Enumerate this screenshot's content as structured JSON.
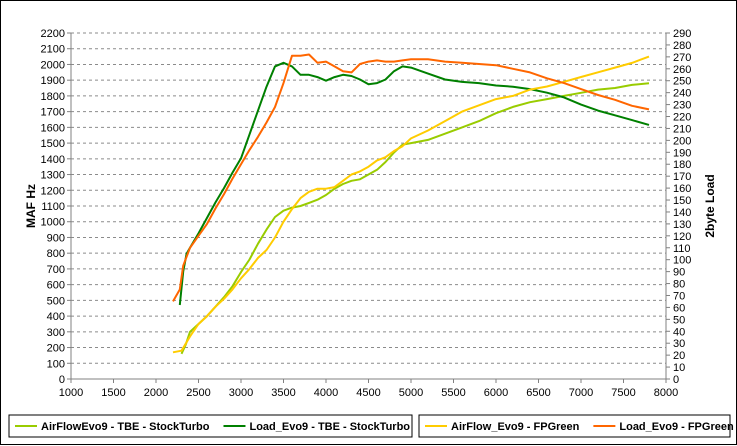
{
  "chart_data": {
    "type": "line",
    "xlabel": "",
    "ylabel_left": "MAF Hz",
    "ylabel_right": "2byte Load",
    "xlim": [
      1000,
      8000
    ],
    "ylim_left": [
      0,
      2200
    ],
    "ylim_right": [
      0,
      290
    ],
    "x_ticks": [
      1000,
      1500,
      2000,
      2500,
      3000,
      3500,
      4000,
      4500,
      5000,
      5500,
      6000,
      6500,
      7000,
      7500,
      8000
    ],
    "y_left_ticks": [
      0,
      100,
      200,
      300,
      400,
      500,
      600,
      700,
      800,
      900,
      1000,
      1100,
      1200,
      1300,
      1400,
      1500,
      1600,
      1700,
      1800,
      1900,
      2000,
      2100,
      2200
    ],
    "y_right_ticks": [
      0,
      10,
      20,
      30,
      40,
      50,
      60,
      70,
      80,
      90,
      100,
      110,
      120,
      130,
      140,
      150,
      160,
      170,
      180,
      190,
      200,
      210,
      220,
      230,
      240,
      250,
      260,
      270,
      280,
      290
    ],
    "grid": "horizontal-dashed",
    "legend_placement": "bottom",
    "legend_groups": [
      [
        "AirFlowEvo9 - TBE - StockTurbo",
        "Load_Evo9 - TBE - StockTurbo"
      ],
      [
        "AirFlow_Evo9 - FPGreen",
        "Load_Evo9 - FPGreen"
      ]
    ],
    "series": [
      {
        "name": "AirFlowEvo9 - TBE - StockTurbo",
        "axis": "left",
        "color": "#99cc00",
        "x": [
          2300,
          2350,
          2400,
          2500,
          2600,
          2700,
          2800,
          2900,
          3000,
          3100,
          3200,
          3300,
          3400,
          3500,
          3600,
          3700,
          3800,
          3900,
          4000,
          4100,
          4200,
          4300,
          4400,
          4500,
          4600,
          4700,
          4800,
          4900,
          5000,
          5200,
          5400,
          5600,
          5800,
          6000,
          6200,
          6400,
          6600,
          6800,
          7000,
          7200,
          7400,
          7600,
          7800
        ],
        "y": [
          160,
          220,
          300,
          350,
          400,
          460,
          520,
          590,
          680,
          760,
          860,
          950,
          1030,
          1070,
          1090,
          1100,
          1120,
          1140,
          1170,
          1210,
          1240,
          1260,
          1270,
          1300,
          1330,
          1380,
          1440,
          1490,
          1500,
          1520,
          1560,
          1600,
          1640,
          1690,
          1730,
          1760,
          1780,
          1800,
          1820,
          1840,
          1850,
          1870,
          1880
        ]
      },
      {
        "name": "Load_Evo9 - TBE - StockTurbo",
        "axis": "right",
        "color": "#008000",
        "x": [
          2280,
          2320,
          2360,
          2400,
          2500,
          2600,
          2700,
          2800,
          2900,
          3000,
          3100,
          3200,
          3300,
          3400,
          3500,
          3600,
          3700,
          3800,
          3900,
          4000,
          4100,
          4200,
          4300,
          4400,
          4500,
          4600,
          4700,
          4800,
          4900,
          5000,
          5200,
          5400,
          5600,
          5800,
          6000,
          6200,
          6400,
          6600,
          6800,
          7000,
          7200,
          7400,
          7600,
          7800
        ],
        "y": [
          62,
          90,
          105,
          110,
          122,
          135,
          148,
          160,
          173,
          185,
          205,
          225,
          245,
          262,
          265,
          262,
          255,
          255,
          253,
          250,
          253,
          255,
          254,
          251,
          247,
          248,
          251,
          258,
          262,
          261,
          256,
          251,
          249,
          248,
          246,
          245,
          243,
          240,
          236,
          230,
          225,
          221,
          217,
          213
        ]
      },
      {
        "name": "AirFlow_Evo9 - FPGreen",
        "axis": "left",
        "color": "#ffcc00",
        "x": [
          2200,
          2300,
          2400,
          2500,
          2600,
          2700,
          2800,
          2900,
          3000,
          3100,
          3200,
          3300,
          3400,
          3500,
          3600,
          3700,
          3800,
          3900,
          4000,
          4100,
          4200,
          4300,
          4400,
          4500,
          4600,
          4700,
          4800,
          4900,
          5000,
          5200,
          5400,
          5600,
          5800,
          6000,
          6200,
          6400,
          6600,
          6800,
          7000,
          7200,
          7400,
          7600,
          7700,
          7800
        ],
        "y": [
          170,
          180,
          270,
          350,
          400,
          460,
          510,
          570,
          640,
          700,
          770,
          820,
          900,
          1000,
          1080,
          1150,
          1190,
          1210,
          1210,
          1220,
          1260,
          1300,
          1320,
          1350,
          1390,
          1410,
          1450,
          1480,
          1530,
          1580,
          1640,
          1700,
          1740,
          1780,
          1800,
          1840,
          1860,
          1890,
          1920,
          1950,
          1980,
          2010,
          2030,
          2050
        ]
      },
      {
        "name": "Load_Evo9 - FPGreen",
        "axis": "right",
        "color": "#ff6600",
        "x": [
          2200,
          2280,
          2320,
          2400,
          2500,
          2600,
          2700,
          2800,
          2900,
          3000,
          3100,
          3200,
          3300,
          3400,
          3500,
          3600,
          3700,
          3800,
          3900,
          4000,
          4100,
          4200,
          4300,
          4400,
          4500,
          4600,
          4700,
          4800,
          4900,
          5000,
          5200,
          5400,
          5600,
          5800,
          6000,
          6200,
          6400,
          6600,
          6800,
          7000,
          7200,
          7400,
          7600,
          7800
        ],
        "y": [
          65,
          75,
          95,
          110,
          120,
          130,
          143,
          155,
          168,
          180,
          192,
          203,
          215,
          228,
          248,
          271,
          271,
          272,
          265,
          266,
          262,
          258,
          257,
          264,
          266,
          267,
          266,
          266,
          267,
          268,
          268,
          266,
          265,
          264,
          263,
          260,
          257,
          252,
          248,
          243,
          238,
          234,
          229,
          226
        ]
      }
    ]
  }
}
